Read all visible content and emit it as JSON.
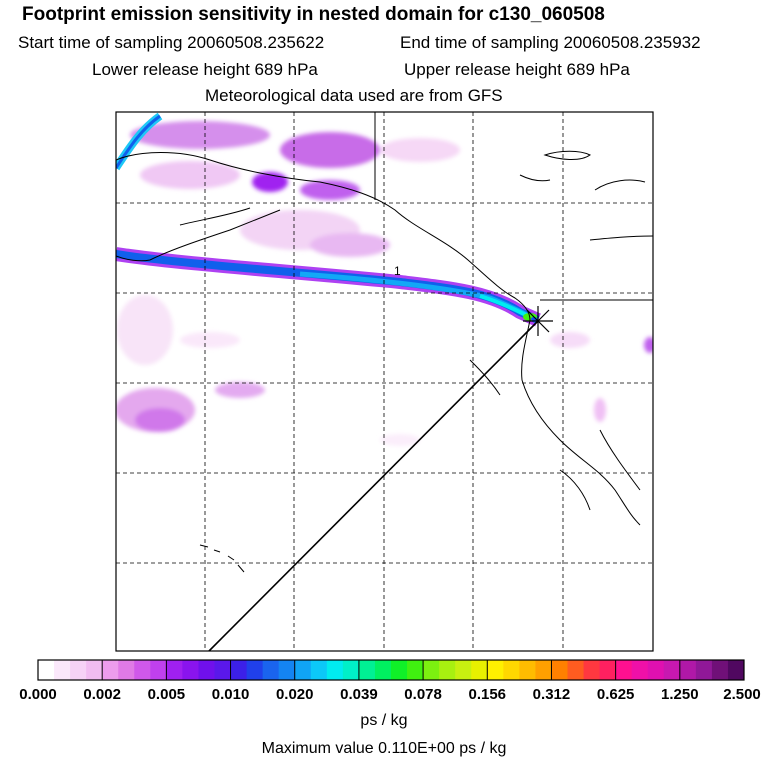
{
  "header": {
    "title": "Footprint emission sensitivity in nested domain for c130_060508",
    "start_time": "Start time of sampling 20060508.235622",
    "end_time": "End time of sampling 20060508.235932",
    "lower_height": "Lower release height  689 hPa",
    "upper_height": "Upper release height  689 hPa",
    "met_data": "Meteorological data used are from GFS"
  },
  "map": {
    "contour_label": "1",
    "receptor_marker": "star-receptor"
  },
  "colorbar": {
    "labels": [
      "0.000",
      "0.002",
      "0.005",
      "0.010",
      "0.020",
      "0.039",
      "0.078",
      "0.156",
      "0.312",
      "0.625",
      "1.250",
      "2.500"
    ],
    "colors": [
      "#ffffff",
      "#fbe8fb",
      "#f6d2f6",
      "#f1bcf1",
      "#ec9cec",
      "#e07ae6",
      "#d058ea",
      "#c040ee",
      "#a020f0",
      "#8a14ee",
      "#7010ec",
      "#5a18ea",
      "#3c20e8",
      "#2040ea",
      "#1a64ee",
      "#1484f2",
      "#10a4f6",
      "#0cc8f8",
      "#00ecf0",
      "#00f0c8",
      "#00f094",
      "#00f060",
      "#10f028",
      "#40f010",
      "#7cf010",
      "#a8f010",
      "#c8f010",
      "#e8f000",
      "#fff000",
      "#ffd800",
      "#ffbc00",
      "#ffa000",
      "#ff8000",
      "#ff5c20",
      "#ff3840",
      "#ff2060",
      "#ff1090",
      "#f010a8",
      "#e010b0",
      "#c818b0",
      "#b018a8",
      "#901898",
      "#701078",
      "#500860"
    ],
    "units": "ps / kg",
    "max_value": "Maximum value  0.110E+00 ps / kg"
  },
  "colors": {
    "frame": "#000000",
    "grid": "#000000",
    "coast": "#000000"
  }
}
